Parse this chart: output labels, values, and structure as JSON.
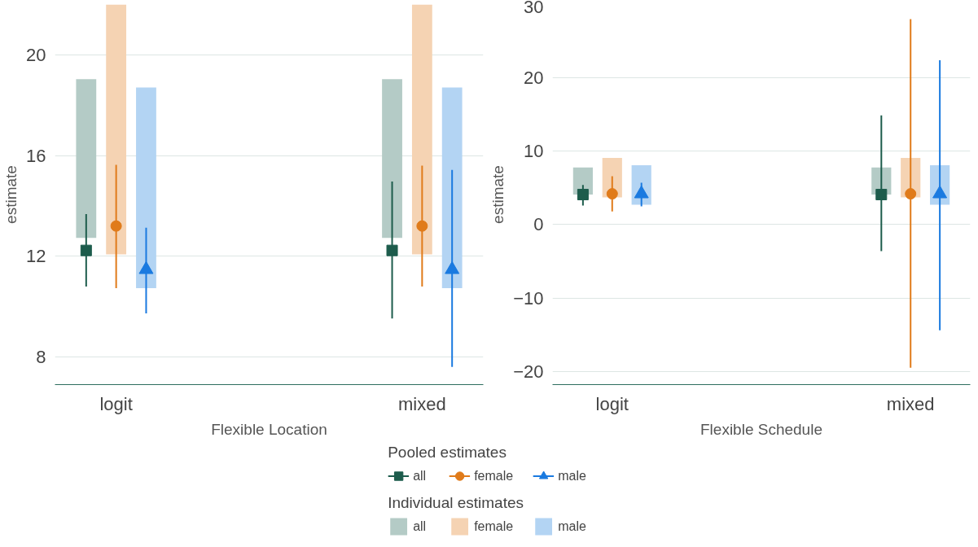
{
  "chart_data": [
    {
      "type": "bar",
      "categories": [
        "logit",
        "mixed"
      ],
      "xlabel": "Flexible Location",
      "ylabel": "estimate",
      "ylim": [
        6.9,
        22.0
      ],
      "yticks": [
        8,
        12,
        16,
        20
      ],
      "grid": "y",
      "legend": "bottom",
      "legend_title": "Pooled estimates",
      "series": [
        {
          "color": "#b4cbc6",
          "values": [
            6.3,
            6.3
          ],
          "base": [
            12.73,
            12.73
          ]
        },
        {
          "color": "#f5d3b3",
          "values": [
            9.93,
            9.93
          ],
          "base": [
            12.07,
            12.07
          ]
        },
        {
          "color": "#b3d4f3",
          "values": [
            7.97,
            7.97
          ],
          "base": [
            10.73,
            10.73
          ]
        },
        {
          "name": "all",
          "type": "scatter",
          "marker": "square",
          "color": "#1d5c4c",
          "values": [
            12.23,
            12.23
          ],
          "errors": [
            [
              10.8,
              13.67
            ],
            [
              9.53,
              14.97
            ]
          ]
        },
        {
          "name": "female",
          "type": "scatter",
          "marker": "circle",
          "color": "#e07b1a",
          "values": [
            13.2,
            13.2
          ],
          "errors": [
            [
              10.73,
              15.63
            ],
            [
              10.8,
              15.6
            ]
          ]
        },
        {
          "name": "male",
          "type": "scatter",
          "marker": "triangle",
          "color": "#1a7ae0",
          "values": [
            11.47,
            11.47
          ],
          "errors": [
            [
              9.73,
              13.13
            ],
            [
              7.6,
              15.43
            ]
          ]
        }
      ]
    },
    {
      "type": "bar",
      "categories": [
        "logit",
        "mixed"
      ],
      "xlabel": "Flexible Schedule",
      "ylabel": "estimate",
      "ylim": [
        -21.8,
        30
      ],
      "yticks": [
        -20,
        -10,
        0,
        10,
        20,
        30
      ],
      "grid": "y",
      "legend": "bottom",
      "legend_title": "Individual estimates",
      "series": [
        {
          "name": "all",
          "color": "#b4cbc6",
          "values": [
            3.7,
            3.7
          ],
          "base": [
            4.1,
            4.1
          ]
        },
        {
          "name": "female",
          "color": "#f5d3b3",
          "values": [
            5.4,
            5.4
          ],
          "base": [
            3.7,
            3.7
          ]
        },
        {
          "name": "male",
          "color": "#b3d4f3",
          "values": [
            5.4,
            5.4
          ],
          "base": [
            2.7,
            2.7
          ]
        },
        {
          "type": "scatter",
          "marker": "square",
          "color": "#1d5c4c",
          "values": [
            4.1,
            4.1
          ],
          "errors": [
            [
              2.6,
              5.4
            ],
            [
              -3.6,
              14.9
            ]
          ]
        },
        {
          "type": "scatter",
          "marker": "circle",
          "color": "#e07b1a",
          "values": [
            4.2,
            4.2
          ],
          "errors": [
            [
              1.8,
              6.6
            ],
            [
              -19.5,
              28.0
            ]
          ]
        },
        {
          "type": "scatter",
          "marker": "triangle",
          "color": "#1a7ae0",
          "values": [
            4.2,
            4.2
          ],
          "errors": [
            [
              2.5,
              5.7
            ],
            [
              -14.4,
              22.4
            ]
          ]
        }
      ]
    }
  ]
}
